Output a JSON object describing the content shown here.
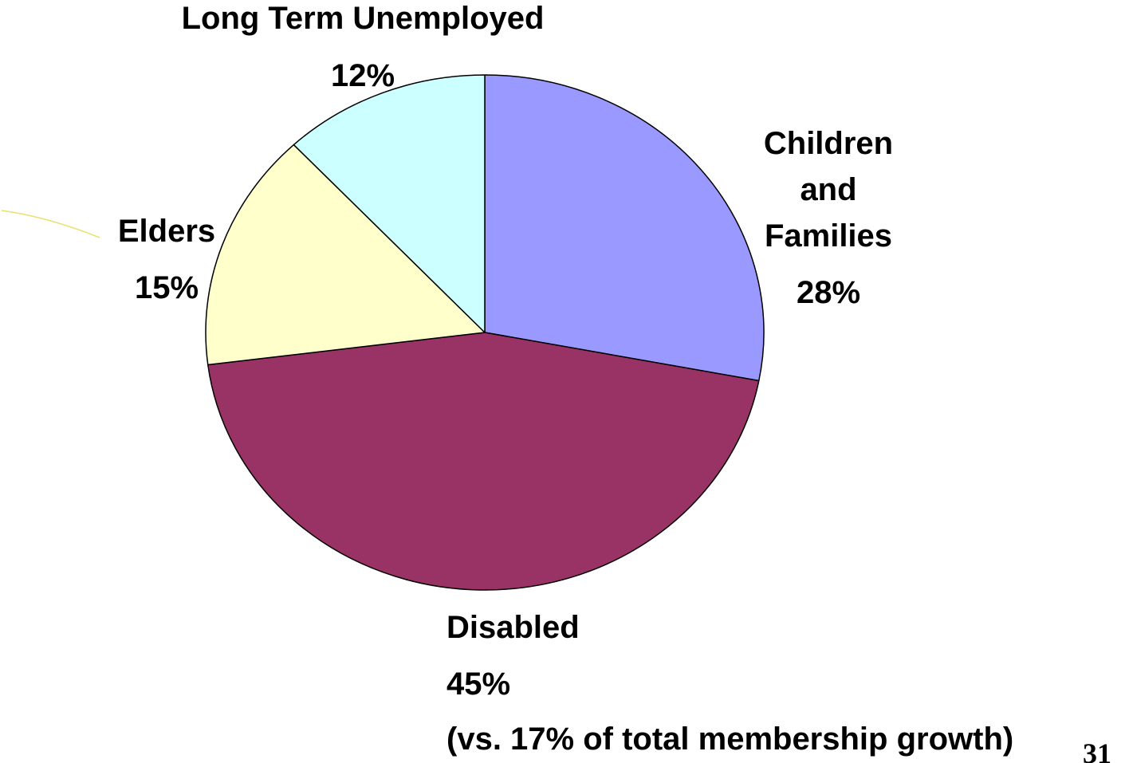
{
  "chart_data": {
    "type": "pie",
    "title": "",
    "slices": [
      {
        "name": "Children and Families",
        "label_lines": [
          "Children",
          "and",
          "Families",
          "28%"
        ],
        "value": 28,
        "color": "#9999FF"
      },
      {
        "name": "Disabled",
        "label_lines": [
          "Disabled",
          "45%",
          "(vs. 17% of total membership growth)"
        ],
        "value": 45,
        "color": "#993366"
      },
      {
        "name": "Elders",
        "label_lines": [
          "Elders",
          "15%"
        ],
        "value": 15,
        "color": "#FFFFCC"
      },
      {
        "name": "Long Term Unemployed",
        "label_lines": [
          "Long Term Unemployed",
          "12%"
        ],
        "value": 12,
        "color": "#CCFFFF"
      }
    ]
  },
  "page_number": "31"
}
